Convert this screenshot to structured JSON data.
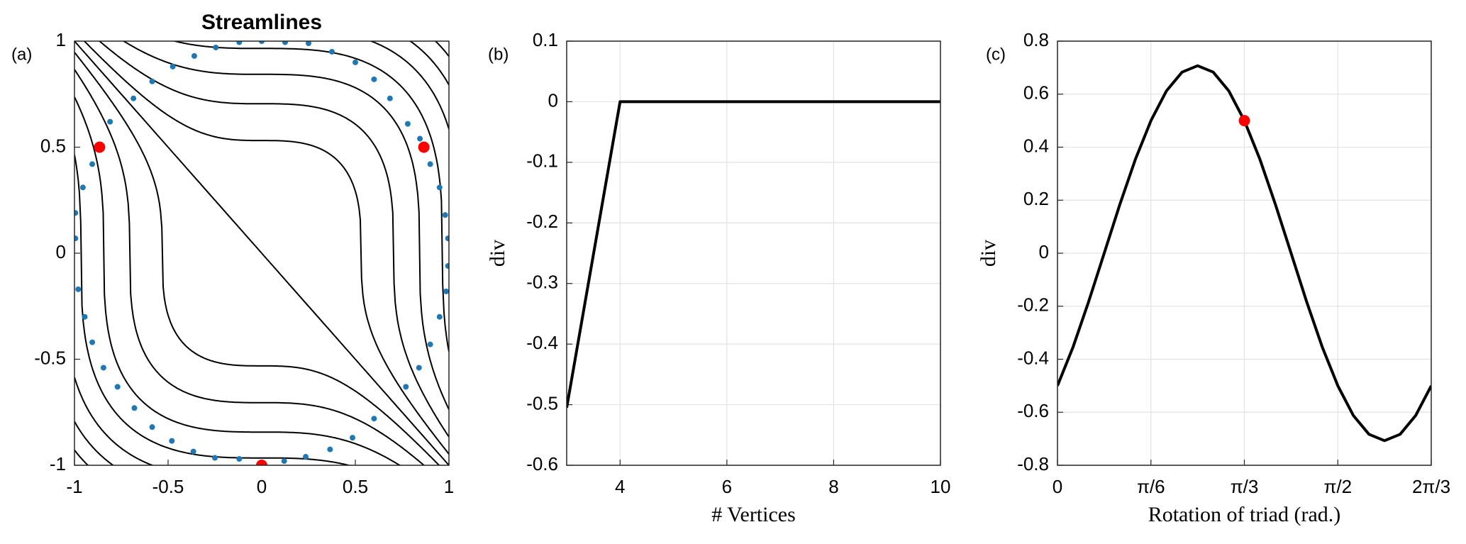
{
  "chart_data": [
    {
      "type": "streamlines",
      "panel_label": "(a)",
      "title": "Streamlines",
      "xlim": [
        -1,
        1
      ],
      "ylim": [
        -1,
        1
      ],
      "xticks": [
        -1,
        -0.5,
        0,
        0.5,
        1
      ],
      "yticks": [
        -1,
        -0.5,
        0,
        0.5,
        1
      ],
      "grid": false,
      "streamline_color": "#000000",
      "streamline_levels": [
        -1.8,
        -1.5,
        -1.2,
        -0.9,
        -0.6,
        -0.35,
        -0.15,
        0,
        0.15,
        0.35,
        0.6,
        0.9,
        1.2,
        1.5,
        1.8
      ],
      "series": [
        {
          "color": "#1f77b4",
          "x": [
            -0.585,
            -0.475,
            -0.36,
            -0.245,
            -0.12,
            0,
            0.125,
            0.25,
            0.375,
            0.5,
            0.6,
            0.685,
            0.78,
            0.845,
            0.9,
            0.95,
            0.98,
            0.995,
            0.995,
            0.985,
            0.95,
            0.9,
            0.84,
            0.77,
            0.6,
            0.485,
            0.365,
            0.235,
            0.12,
            -0.12,
            -0.25,
            -0.365,
            -0.48,
            -0.585,
            -0.68,
            -0.77,
            -0.845,
            -0.905,
            -0.945,
            -0.98,
            -0.995,
            -0.995,
            -0.955,
            -0.905,
            -0.81,
            -0.685
          ],
          "y": [
            0.81,
            0.88,
            0.93,
            0.97,
            0.995,
            1,
            0.995,
            0.99,
            0.95,
            0.9,
            0.82,
            0.73,
            0.61,
            0.54,
            0.42,
            0.31,
            0.18,
            0.07,
            -0.06,
            -0.18,
            -0.3,
            -0.43,
            -0.54,
            -0.63,
            -0.78,
            -0.87,
            -0.925,
            -0.96,
            -0.98,
            -0.97,
            -0.965,
            -0.935,
            -0.885,
            -0.82,
            -0.73,
            -0.63,
            -0.54,
            -0.42,
            -0.3,
            -0.17,
            0.07,
            0.19,
            0.31,
            0.42,
            0.62,
            0.73
          ]
        },
        {
          "color": "#ff0000",
          "x": [
            -0.866,
            0.866,
            0
          ],
          "y": [
            0.5,
            0.5,
            -1
          ]
        }
      ]
    },
    {
      "type": "line",
      "panel_label": "(b)",
      "xlabel": "# Vertices",
      "ylabel": "div",
      "xlim": [
        3,
        10
      ],
      "ylim": [
        -0.6,
        0.1
      ],
      "xticks": [
        4,
        6,
        8,
        10
      ],
      "yticks": [
        -0.6,
        -0.5,
        -0.4,
        -0.3,
        -0.2,
        -0.1,
        0,
        0.1
      ],
      "grid": true,
      "x": [
        3,
        4,
        5,
        6,
        7,
        8,
        9,
        10
      ],
      "series": [
        {
          "color": "#000000",
          "values": [
            -0.505,
            0,
            0,
            0,
            0,
            0,
            0,
            0
          ]
        }
      ]
    },
    {
      "type": "line",
      "panel_label": "(c)",
      "xlabel": "Rotation of triad (rad.)",
      "ylabel": "div",
      "xlim": [
        0,
        2.0944
      ],
      "ylim": [
        -0.8,
        0.8
      ],
      "xticks": [
        0,
        {
          "value": 0.5236,
          "label": "π/6"
        },
        {
          "value": 1.0472,
          "label": "π/3"
        },
        {
          "value": 1.5708,
          "label": "π/2"
        },
        {
          "value": 2.0944,
          "label": "2π/3"
        }
      ],
      "yticks": [
        -0.8,
        -0.6,
        -0.4,
        -0.2,
        0,
        0.2,
        0.4,
        0.6,
        0.8
      ],
      "grid": true,
      "x": [
        0,
        0.0873,
        0.1745,
        0.2618,
        0.3491,
        0.4363,
        0.5236,
        0.6109,
        0.6981,
        0.7854,
        0.8727,
        0.9599,
        1.0472,
        1.1345,
        1.2217,
        1.309,
        1.3963,
        1.4835,
        1.5708,
        1.6581,
        1.7453,
        1.8326,
        1.9199,
        2.0071,
        2.0944
      ],
      "series": [
        {
          "color": "#000000",
          "values": [
            -0.5,
            -0.3536,
            -0.183,
            0,
            0.183,
            0.3536,
            0.5,
            0.6124,
            0.683,
            0.7071,
            0.683,
            0.6124,
            0.5,
            0.3536,
            0.183,
            0,
            -0.183,
            -0.3536,
            -0.5,
            -0.6124,
            -0.683,
            -0.7071,
            -0.683,
            -0.6124,
            -0.5
          ]
        }
      ],
      "markers": {
        "color": "#ff0000",
        "x": [
          1.0472
        ],
        "y": [
          0.5
        ]
      }
    }
  ]
}
